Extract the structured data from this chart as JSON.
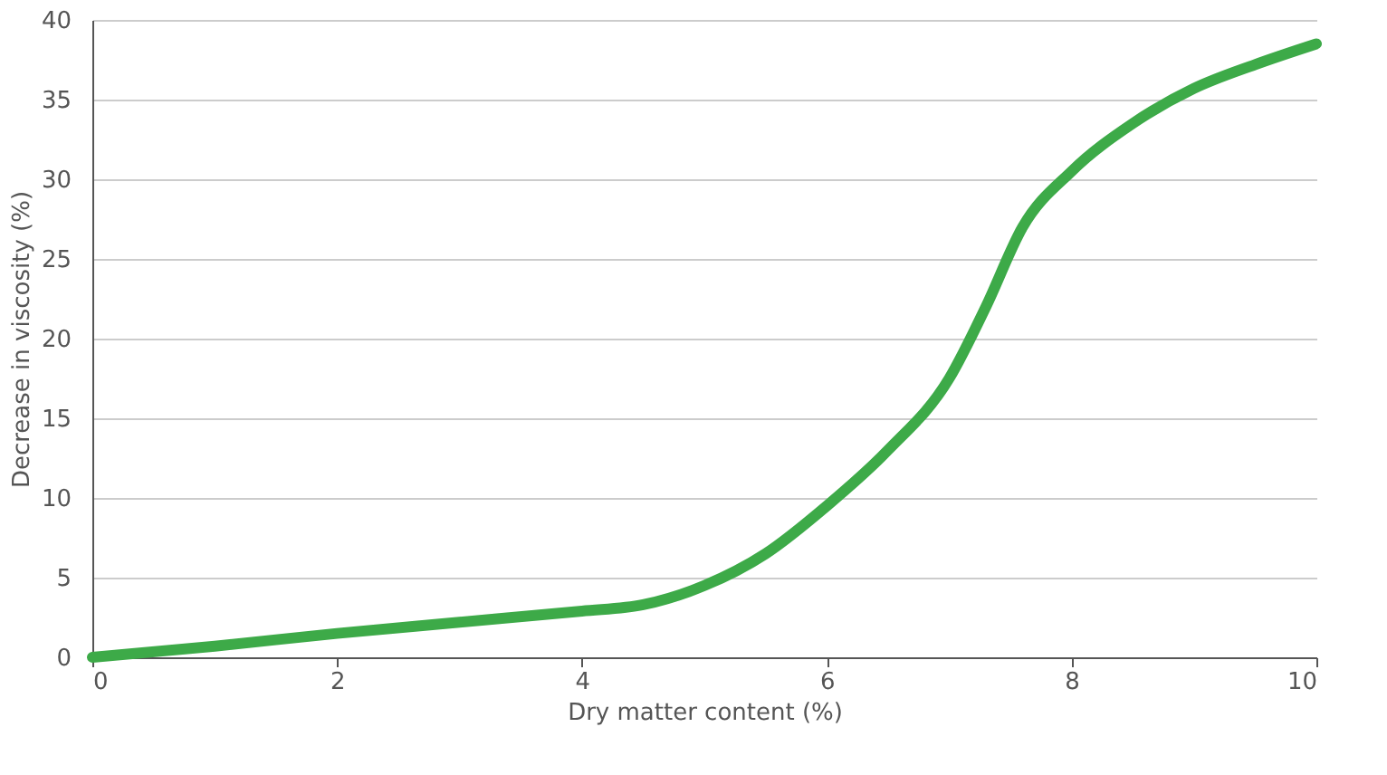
{
  "chart_data": {
    "type": "line",
    "xlabel": "Dry matter content (%)",
    "ylabel": "Decrease in viscosity  (%)",
    "x": [
      0,
      1,
      2,
      3,
      4,
      4.5,
      5,
      5.5,
      6,
      6.5,
      7,
      7.3,
      7.6,
      8,
      8.5,
      9,
      9.5,
      10
    ],
    "series": [
      {
        "color": "#3daa48",
        "values": [
          0,
          0.7,
          1.5,
          2.2,
          2.9,
          3.3,
          4.5,
          6.5,
          9.5,
          13,
          17.5,
          22,
          27,
          30.5,
          33.5,
          35.7,
          37.2,
          38.5
        ]
      }
    ],
    "xlim": [
      0,
      10
    ],
    "xticks": [
      0,
      2,
      4,
      6,
      8,
      10
    ],
    "ylim": [
      0,
      40
    ],
    "yticks": [
      0,
      5,
      10,
      15,
      20,
      25,
      30,
      35,
      40
    ],
    "grid": "y",
    "marker": "none",
    "line_style": "solid"
  }
}
